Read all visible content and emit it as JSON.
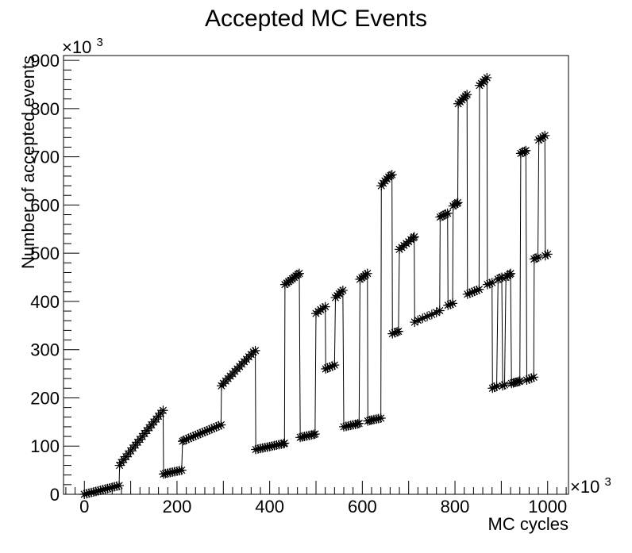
{
  "chart_data": {
    "type": "line",
    "title": "Accepted MC Events",
    "xlabel": "MC cycles",
    "ylabel": "Number of accepted events",
    "x_multiplier_label": "×10",
    "y_multiplier_label": "×10",
    "multiplier_exponent": "3",
    "xlim": [
      -45,
      1045
    ],
    "ylim": [
      0,
      910
    ],
    "x_ticks": [
      0,
      200,
      400,
      600,
      800,
      1000
    ],
    "y_ticks": [
      0,
      100,
      200,
      300,
      400,
      500,
      600,
      700,
      800,
      900
    ],
    "x_tick_labels": [
      "0",
      "200",
      "400",
      "600",
      "800",
      "1000"
    ],
    "y_tick_labels": [
      "0",
      "100",
      "200",
      "300",
      "400",
      "500",
      "600",
      "700",
      "800",
      "900"
    ],
    "grid": false,
    "legend": "none",
    "marker": "asterisk",
    "line_color": "#000000",
    "series": [
      {
        "x": [
          0,
          5,
          10,
          15,
          20,
          25,
          30,
          35,
          40,
          45,
          50,
          55,
          60,
          65,
          70,
          75,
          76,
          80,
          85,
          90,
          95,
          100,
          105,
          110,
          115,
          120,
          125,
          130,
          135,
          140,
          145,
          150,
          155,
          160,
          165,
          170,
          171,
          175,
          180,
          185,
          190,
          195,
          200,
          205,
          210,
          212,
          215,
          220,
          225,
          230,
          235,
          240,
          245,
          250,
          255,
          260,
          265,
          270,
          275,
          280,
          285,
          290,
          295,
          296,
          300,
          305,
          310,
          315,
          320,
          325,
          330,
          335,
          340,
          345,
          350,
          355,
          360,
          365,
          369,
          370,
          375,
          380,
          385,
          390,
          395,
          400,
          405,
          410,
          415,
          420,
          425,
          430,
          432,
          433,
          437,
          441,
          445,
          449,
          453,
          457,
          461,
          464,
          466,
          470,
          475,
          480,
          485,
          490,
          495,
          498,
          500,
          505,
          510,
          515,
          520,
          521,
          525,
          530,
          535,
          540,
          542,
          546,
          550,
          554,
          558,
          560,
          565,
          570,
          575,
          580,
          585,
          590,
          593,
          595,
          599,
          603,
          607,
          611,
          612,
          616,
          620,
          625,
          630,
          635,
          640,
          641,
          645,
          649,
          653,
          657,
          661,
          664,
          665,
          670,
          675,
          678,
          680,
          685,
          690,
          695,
          700,
          705,
          710,
          712,
          713,
          720,
          730,
          740,
          750,
          760,
          767,
          768,
          772,
          776,
          780,
          784,
          785,
          790,
          795,
          796,
          800,
          804,
          806,
          807,
          811,
          815,
          819,
          823,
          826,
          827,
          832,
          837,
          842,
          847,
          852,
          853,
          857,
          861,
          865,
          869,
          870,
          875,
          880,
          881,
          885,
          890,
          893,
          897,
          901,
          903,
          907,
          910,
          914,
          918,
          920,
          922,
          926,
          930,
          934,
          938,
          940,
          942,
          946,
          950,
          953,
          955,
          960,
          965,
          970,
          971,
          975,
          979,
          981,
          985,
          990,
          994,
          995,
          1000
        ],
        "y": [
          0,
          1.2,
          2.4,
          3.6,
          4.8,
          6,
          7.2,
          8.4,
          9.6,
          10.8,
          12,
          13.2,
          14.4,
          15.6,
          16.8,
          18,
          60,
          66,
          72,
          78,
          84,
          90,
          96,
          102,
          108,
          114,
          120,
          126,
          132,
          138,
          144,
          150,
          156,
          162,
          168,
          174,
          42,
          43,
          44,
          45,
          46,
          47,
          48,
          49,
          50,
          110,
          112,
          114,
          116,
          118,
          120,
          122,
          124,
          126,
          128,
          130,
          132,
          134,
          136,
          138,
          140,
          142,
          144,
          225,
          230,
          235,
          240,
          245,
          250,
          255,
          260,
          265,
          270,
          275,
          280,
          285,
          290,
          295,
          298,
          93,
          94,
          95,
          96,
          97,
          98,
          99,
          100,
          101,
          102,
          103,
          104,
          105,
          106,
          435,
          438,
          441,
          444,
          447,
          450,
          453,
          456,
          458,
          118,
          119,
          120,
          121,
          122,
          123,
          124,
          125,
          375,
          379,
          383,
          386,
          389,
          260,
          262,
          264,
          266,
          268,
          408,
          412,
          416,
          420,
          423,
          140,
          141,
          142,
          143,
          144,
          145,
          146,
          147,
          446,
          449,
          452,
          455,
          458,
          152,
          153,
          154,
          155,
          156,
          157,
          158,
          640,
          645,
          650,
          654,
          658,
          661,
          663,
          333,
          335,
          337,
          338,
          508,
          512,
          516,
          520,
          524,
          528,
          532,
          534,
          357,
          361,
          365,
          369,
          373,
          377,
          381,
          575,
          577,
          579,
          581,
          583,
          392,
          394,
          396,
          598,
          601,
          603,
          605,
          810,
          814,
          818,
          822,
          826,
          829,
          415,
          417,
          419,
          421,
          423,
          425,
          848,
          852,
          856,
          860,
          864,
          435,
          437,
          439,
          220,
          222,
          224,
          446,
          448,
          450,
          225,
          227,
          450,
          453,
          456,
          458,
          230,
          231,
          232,
          233,
          234,
          235,
          707,
          709,
          711,
          713,
          237,
          239,
          241,
          243,
          488,
          490,
          492,
          735,
          738,
          741,
          744,
          495,
          498
        ]
      }
    ]
  }
}
